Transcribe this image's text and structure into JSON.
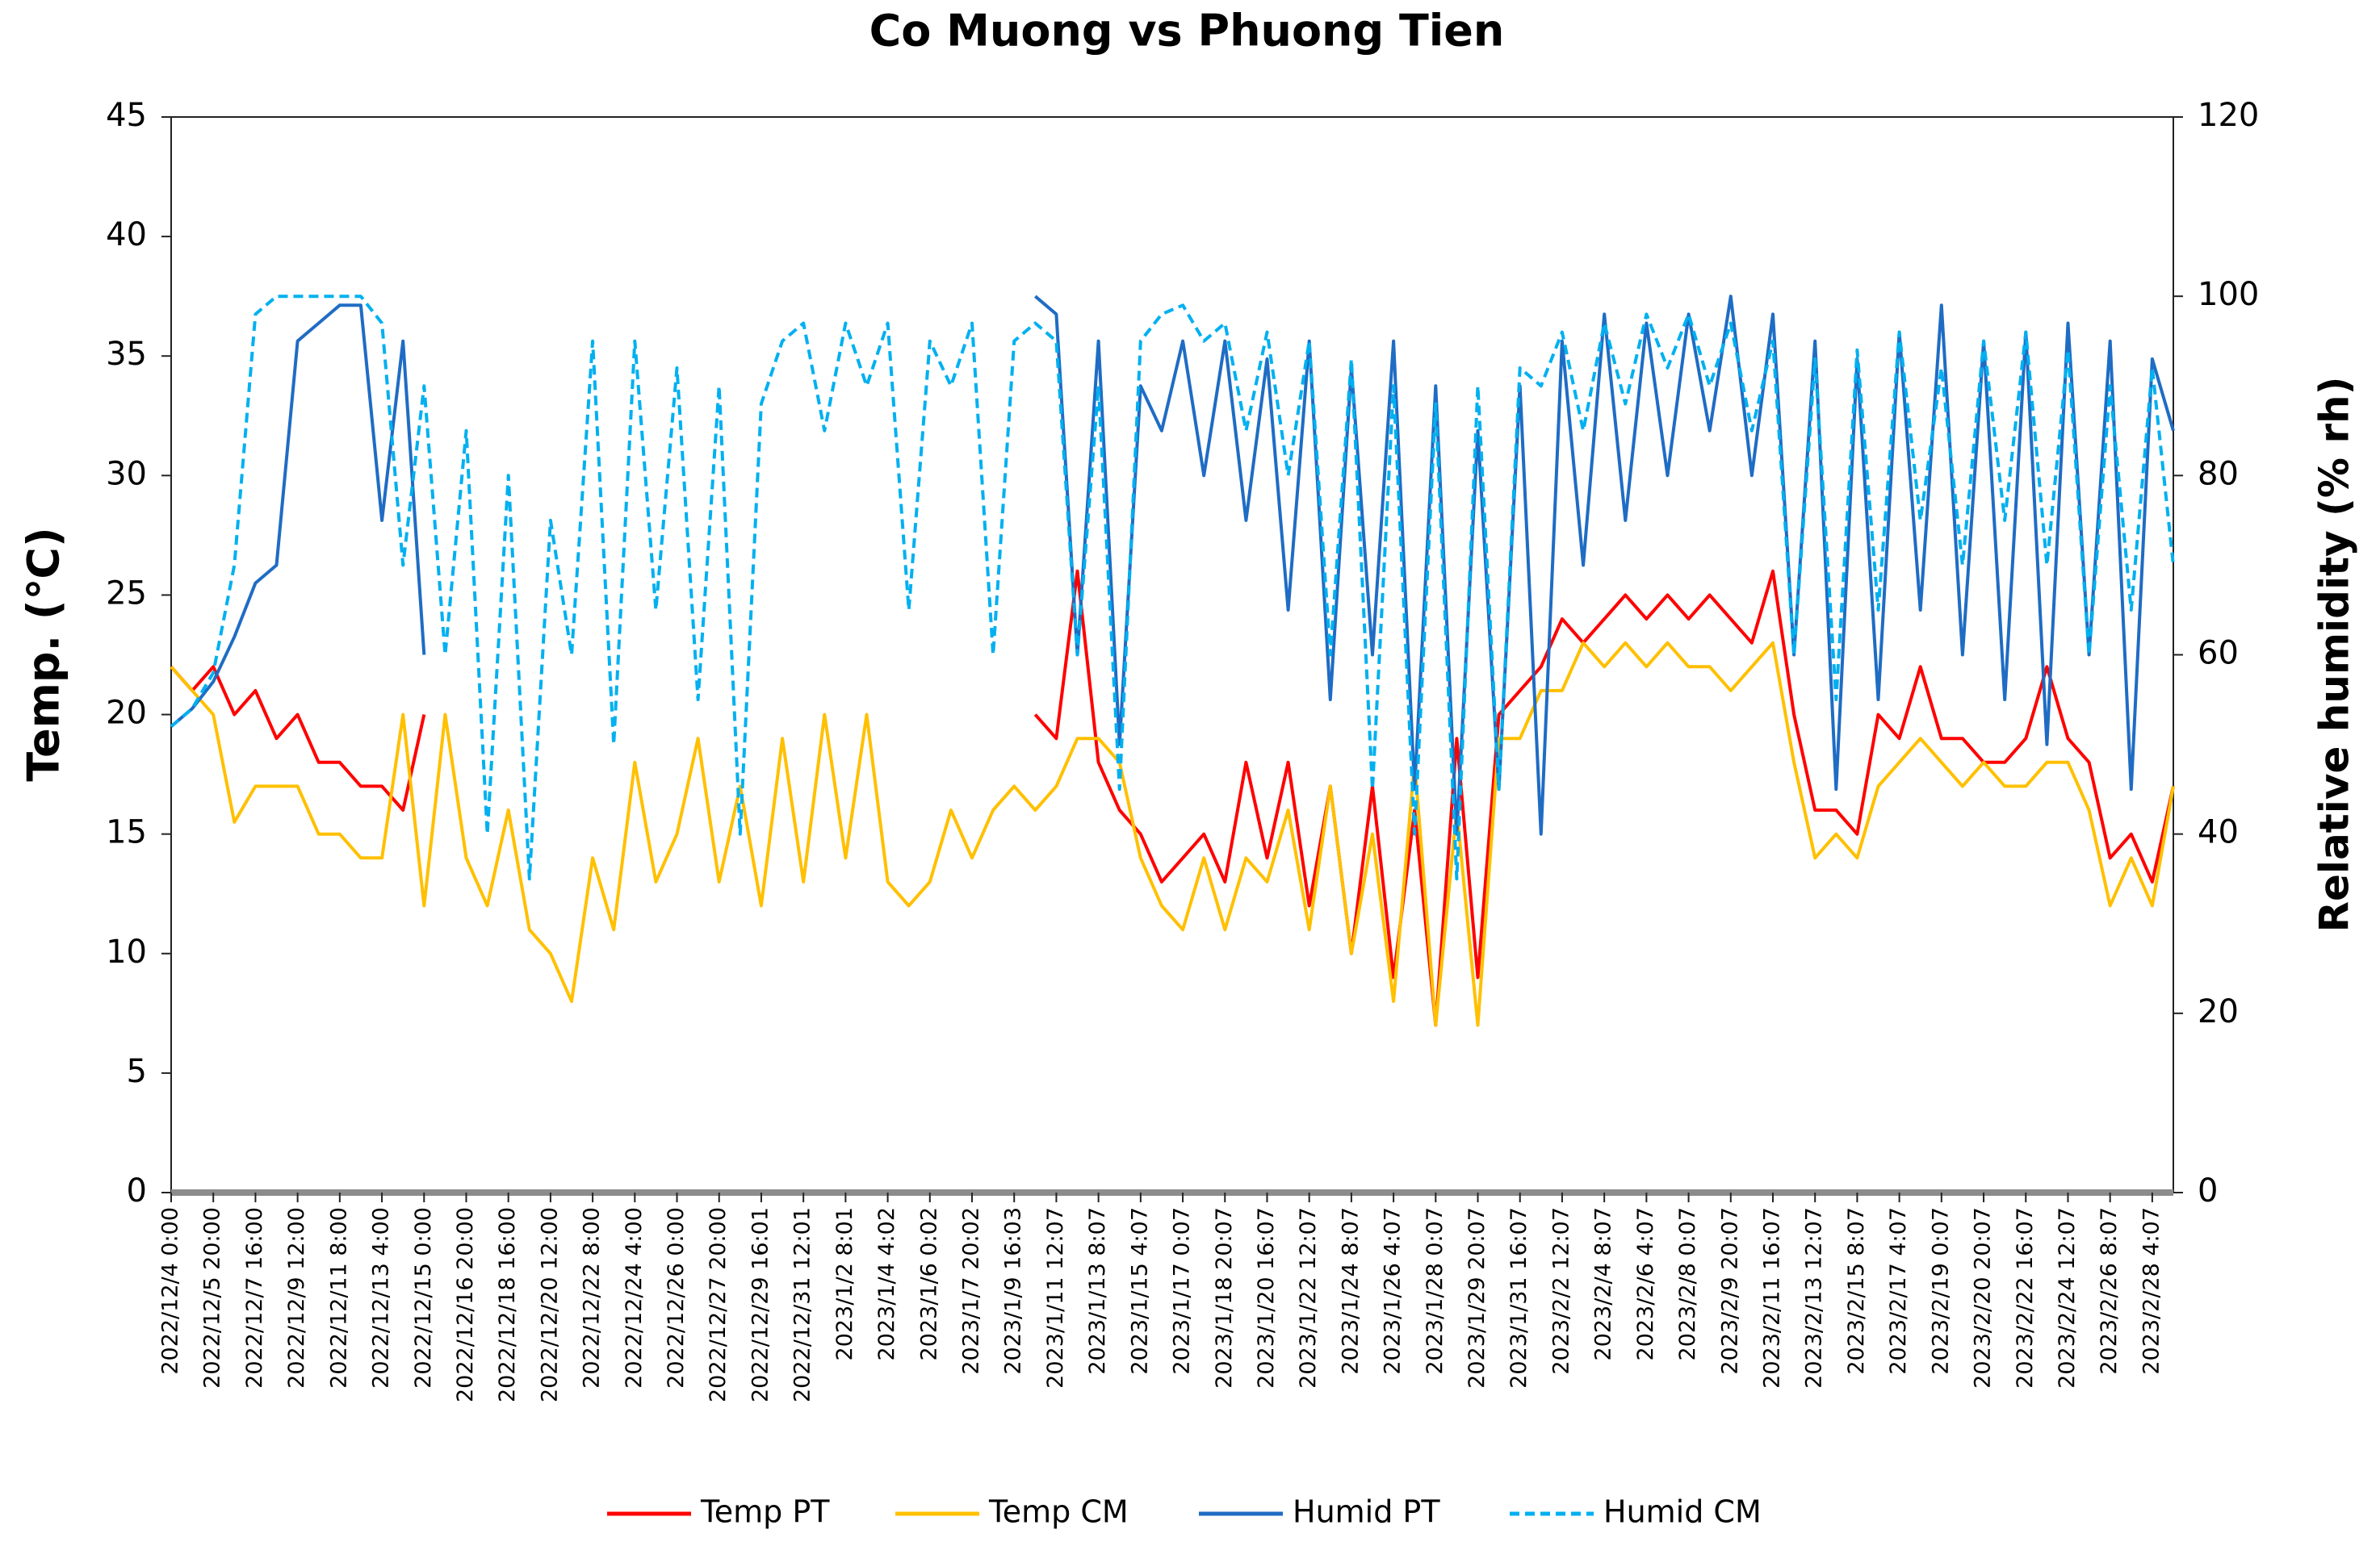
{
  "chart_data": {
    "type": "line",
    "title": "Co Muong vs Phuong Tien",
    "ylabel": "Temp. (℃)",
    "y2label": "Relative humidity (% rh)",
    "ylim": [
      0,
      45
    ],
    "yticks": [
      0,
      5,
      10,
      15,
      20,
      25,
      30,
      35,
      40,
      45
    ],
    "y2lim": [
      0,
      120
    ],
    "y2ticks": [
      0,
      20,
      40,
      60,
      80,
      100,
      120
    ],
    "grid": false,
    "legend": "bottom",
    "categories": [
      "2022/12/4 0:00",
      null,
      "2022/12/5 20:00",
      null,
      "2022/12/7 16:00",
      null,
      "2022/12/9 12:00",
      null,
      "2022/12/11 8:00",
      null,
      "2022/12/13 4:00",
      null,
      "2022/12/15 0:00",
      null,
      "2022/12/16 20:00",
      null,
      "2022/12/18 16:00",
      null,
      "2022/12/20 12:00",
      null,
      "2022/12/22 8:00",
      null,
      "2022/12/24 4:00",
      null,
      "2022/12/26 0:00",
      null,
      "2022/12/27 20:00",
      null,
      "2022/12/29 16:01",
      null,
      "2022/12/31 12:01",
      null,
      "2023/1/2 8:01",
      null,
      "2023/1/4 4:02",
      null,
      "2023/1/6 0:02",
      null,
      "2023/1/7 20:02",
      null,
      "2023/1/9 16:03",
      null,
      "2023/1/11 12:07",
      null,
      "2023/1/13 8:07",
      null,
      "2023/1/15 4:07",
      null,
      "2023/1/17 0:07",
      null,
      "2023/1/18 20:07",
      null,
      "2023/1/20 16:07",
      null,
      "2023/1/22 12:07",
      null,
      "2023/1/24 8:07",
      null,
      "2023/1/26 4:07",
      null,
      "2023/1/28 0:07",
      null,
      "2023/1/29 20:07",
      null,
      "2023/1/31 16:07",
      null,
      "2023/2/2 12:07",
      null,
      "2023/2/4 8:07",
      null,
      "2023/2/6 4:07",
      null,
      "2023/2/8 0:07",
      null,
      "2023/2/9 20:07",
      null,
      "2023/2/11 16:07",
      null,
      "2023/2/13 12:07",
      null,
      "2023/2/15 8:07",
      null,
      "2023/2/17 4:07",
      null,
      "2023/2/19 0:07",
      null,
      "2023/2/20 20:07",
      null,
      "2023/2/22 16:07",
      null,
      "2023/2/24 12:07",
      null,
      "2023/2/26 8:07",
      null,
      "2023/2/28 4:07",
      null
    ],
    "series": [
      {
        "name": "Temp PT",
        "color": "#ff0000",
        "dashed": false,
        "values": [
          22,
          21,
          22,
          20,
          21,
          19,
          20,
          18,
          18,
          17,
          17,
          16,
          20,
          null,
          null,
          null,
          null,
          null,
          null,
          null,
          null,
          null,
          null,
          null,
          null,
          null,
          null,
          null,
          null,
          null,
          null,
          null,
          null,
          null,
          null,
          null,
          null,
          null,
          null,
          null,
          null,
          20,
          19,
          26,
          18,
          16,
          15,
          13,
          14,
          15,
          13,
          18,
          14,
          18,
          12,
          17,
          10,
          17,
          9,
          16,
          7,
          19,
          9,
          20,
          21,
          22,
          24,
          23,
          24,
          25,
          24,
          25,
          24,
          25,
          24,
          23,
          26,
          20,
          16,
          16,
          15,
          20,
          19,
          22,
          19,
          19,
          18,
          18,
          19,
          22,
          19,
          18,
          14,
          15,
          13,
          17
        ]
      },
      {
        "name": "Temp CM",
        "color": "#ffc000",
        "dashed": false,
        "values": [
          22,
          21,
          20,
          15.5,
          17,
          17,
          17,
          15,
          15,
          14,
          14,
          20,
          12,
          20,
          14,
          12,
          16,
          11,
          10,
          8,
          14,
          11,
          18,
          13,
          15,
          19,
          13,
          17,
          12,
          19,
          13,
          20,
          14,
          20,
          13,
          12,
          13,
          16,
          14,
          16,
          17,
          16,
          17,
          19,
          19,
          18,
          14,
          12,
          11,
          14,
          11,
          14,
          13,
          16,
          11,
          17,
          10,
          15,
          8,
          18,
          7,
          16,
          7,
          19,
          19,
          21,
          21,
          23,
          22,
          23,
          22,
          23,
          22,
          22,
          21,
          22,
          23,
          18,
          14,
          15,
          14,
          17,
          18,
          19,
          18,
          17,
          18,
          17,
          17,
          18,
          18,
          16,
          12,
          14,
          12,
          17
        ]
      },
      {
        "name": "Humid PT",
        "color": "#1f6cc4",
        "dashed": false,
        "axis": "y2",
        "values": [
          52,
          54,
          57,
          62,
          68,
          70,
          95,
          97,
          99,
          99,
          75,
          95,
          60,
          null,
          null,
          null,
          null,
          null,
          null,
          null,
          null,
          null,
          null,
          null,
          null,
          null,
          null,
          null,
          null,
          null,
          null,
          null,
          null,
          null,
          null,
          null,
          null,
          null,
          null,
          null,
          null,
          100,
          98,
          60,
          95,
          50,
          90,
          85,
          95,
          80,
          95,
          75,
          93,
          65,
          95,
          55,
          92,
          60,
          95,
          45,
          90,
          40,
          85,
          45,
          90,
          40,
          95,
          70,
          98,
          75,
          97,
          80,
          98,
          85,
          100,
          80,
          98,
          60,
          95,
          45,
          93,
          55,
          96,
          65,
          99,
          60,
          95,
          55,
          96,
          50,
          97,
          60,
          95,
          45,
          93,
          85
        ]
      },
      {
        "name": "Humid CM",
        "color": "#00b0f0",
        "dashed": true,
        "axis": "y2",
        "values": [
          52,
          54,
          58,
          70,
          98,
          100,
          100,
          100,
          100,
          100,
          97,
          70,
          90,
          60,
          85,
          40,
          80,
          35,
          75,
          60,
          95,
          50,
          95,
          65,
          92,
          55,
          90,
          40,
          88,
          95,
          97,
          85,
          97,
          90,
          97,
          65,
          95,
          90,
          97,
          60,
          95,
          97,
          95,
          60,
          90,
          45,
          95,
          98,
          99,
          95,
          97,
          85,
          96,
          80,
          95,
          60,
          93,
          45,
          90,
          40,
          88,
          35,
          90,
          45,
          92,
          90,
          96,
          85,
          97,
          88,
          98,
          92,
          98,
          90,
          97,
          85,
          95,
          60,
          93,
          55,
          94,
          65,
          96,
          75,
          92,
          70,
          95,
          75,
          96,
          70,
          94,
          60,
          90,
          65,
          92,
          70
        ]
      }
    ]
  }
}
